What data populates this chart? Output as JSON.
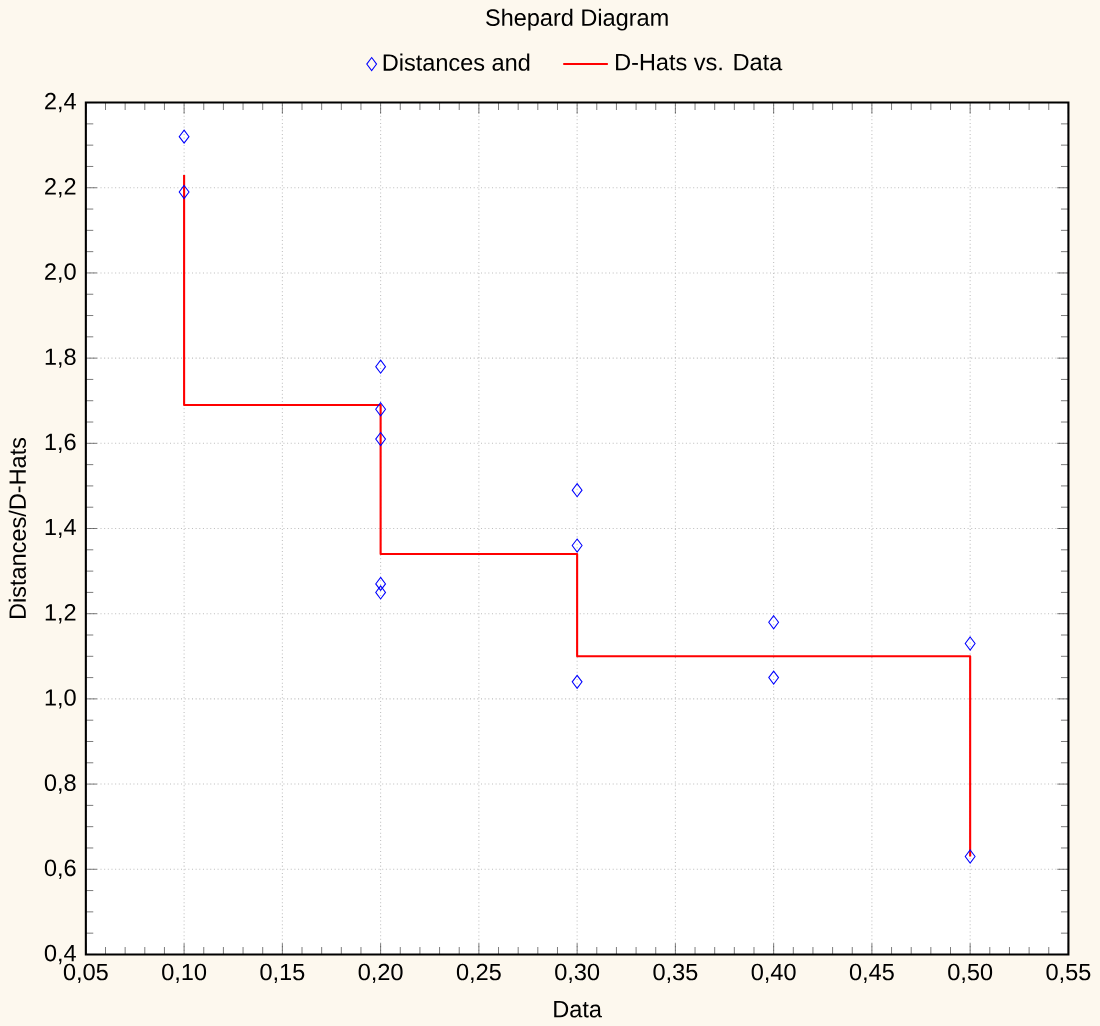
{
  "chart_data": {
    "type": "scatter",
    "title": "Shepard Diagram",
    "xlabel": "Data",
    "ylabel": "Distances/D-Hats",
    "series": [
      {
        "name": "Distances and",
        "color": "#0000ff",
        "marker": "diamond",
        "x": [
          0.1,
          0.1,
          0.2,
          0.2,
          0.2,
          0.2,
          0.2,
          0.3,
          0.3,
          0.3,
          0.4,
          0.4,
          0.5,
          0.5
        ],
        "values": [
          2.32,
          2.19,
          1.78,
          1.68,
          1.61,
          1.27,
          1.25,
          1.49,
          1.36,
          1.04,
          1.18,
          1.05,
          1.13,
          0.63
        ]
      },
      {
        "name": "D-Hats vs. Data",
        "type": "line",
        "color": "#ff0000",
        "marker": "none",
        "line_style": "solid",
        "x": [
          0.1,
          0.1,
          0.2,
          0.2,
          0.3,
          0.3,
          0.5,
          0.5
        ],
        "values": [
          2.23,
          1.69,
          1.69,
          1.34,
          1.34,
          1.1,
          1.1,
          0.63
        ]
      }
    ],
    "xlim": [
      0.05,
      0.55
    ],
    "xticks": [
      {
        "value": 0.05,
        "label": "0,05"
      },
      {
        "value": 0.1,
        "label": "0,10"
      },
      {
        "value": 0.15,
        "label": "0,15"
      },
      {
        "value": 0.2,
        "label": "0,20"
      },
      {
        "value": 0.25,
        "label": "0,25"
      },
      {
        "value": 0.3,
        "label": "0,30"
      },
      {
        "value": 0.35,
        "label": "0,35"
      },
      {
        "value": 0.4,
        "label": "0,40"
      },
      {
        "value": 0.45,
        "label": "0,45"
      },
      {
        "value": 0.5,
        "label": "0,50"
      },
      {
        "value": 0.55,
        "label": "0,55"
      }
    ],
    "ylim": [
      0.4,
      2.4
    ],
    "yticks": [
      {
        "value": 0.4,
        "label": "0,4"
      },
      {
        "value": 0.6,
        "label": "0,6"
      },
      {
        "value": 0.8,
        "label": "0,8"
      },
      {
        "value": 1.0,
        "label": "1,0"
      },
      {
        "value": 1.2,
        "label": "1,2"
      },
      {
        "value": 1.4,
        "label": "1,4"
      },
      {
        "value": 1.6,
        "label": "1,6"
      },
      {
        "value": 1.8,
        "label": "1,8"
      },
      {
        "value": 2.0,
        "label": "2,0"
      },
      {
        "value": 2.2,
        "label": "2,2"
      },
      {
        "value": 2.4,
        "label": "2,4"
      }
    ],
    "grid": true,
    "legend": "top"
  }
}
